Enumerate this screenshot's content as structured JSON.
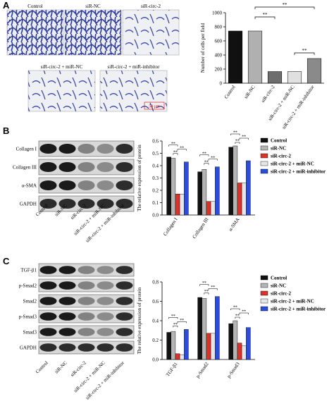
{
  "panel_a": {
    "label": "A",
    "images": [
      "Control",
      "siR-NC",
      "siR-circ-2",
      "siR-circ-2 + miR-NC",
      "siR-circ-2 + miR-inhibitor"
    ],
    "scale_bar": "50 μm"
  },
  "panel_b": {
    "label": "B",
    "blot_rows": [
      "Collagen I",
      "Collagen III",
      "α-SMA",
      "GAPDH"
    ],
    "lanes": [
      "Control",
      "siR-NC",
      "siR-circ-2",
      "siR-circ-2 + miR-NC",
      "siR-circ-2 + miR-inhibitor"
    ]
  },
  "panel_c": {
    "label": "C",
    "blot_rows": [
      "TGF-β1",
      "p-Smad2",
      "Smad2",
      "p-Smad3",
      "Smad3",
      "GAPDH"
    ],
    "lanes": [
      "Control",
      "siR-NC",
      "siR-circ-2",
      "siR-circ-2 + miR-NC",
      "siR-circ-2 + miR-inhibitor"
    ]
  },
  "chart_data": [
    {
      "type": "bar",
      "ylabel": "Number of cells per field",
      "categories": [
        "Control",
        "siR-NC",
        "siR-circ-2",
        "siR-circ-2 + miR-NC",
        "siR-circ-2 + miR-inhibitor"
      ],
      "values": [
        740,
        740,
        165,
        165,
        350
      ],
      "colors": [
        "#111111",
        "#b0b0b0",
        "#6e6e6e",
        "#e0e0e0",
        "#8a8a8a"
      ],
      "ylim": [
        0,
        1000
      ],
      "yticks": [
        0,
        200,
        400,
        600,
        800,
        1000
      ],
      "significance": "**"
    },
    {
      "type": "grouped_bar",
      "ylabel": "The relative expression of protein",
      "categories": [
        "Collagen I",
        "Collagen III",
        "α-SMA"
      ],
      "series": [
        {
          "name": "Control",
          "color": "#111111",
          "values": [
            0.47,
            0.35,
            0.55
          ]
        },
        {
          "name": "siR-NC",
          "color": "#b5b5b5",
          "values": [
            0.46,
            0.37,
            0.56
          ]
        },
        {
          "name": "siR-circ-2",
          "color": "#d9342b",
          "values": [
            0.17,
            0.11,
            0.26
          ]
        },
        {
          "name": "siR-circ-2 + miR-NC",
          "color": "#e6e6e6",
          "values": [
            0.17,
            0.11,
            0.26
          ]
        },
        {
          "name": "siR-circ-2 + miR-inhibitor",
          "color": "#2a4fd6",
          "values": [
            0.43,
            0.39,
            0.44
          ]
        }
      ],
      "ylim": [
        0,
        0.6
      ],
      "yticks": [
        {
          "value": 0,
          "label": "0.0"
        },
        0.1,
        0.2,
        0.3,
        0.4,
        0.5,
        0.6
      ],
      "significance": "**"
    },
    {
      "type": "grouped_bar",
      "ylabel": "The relative expression of protein",
      "categories": [
        "TGF-β1",
        "p-Smad2",
        "p-Smad3"
      ],
      "series": [
        {
          "name": "Control",
          "color": "#111111",
          "values": [
            0.28,
            0.64,
            0.37
          ]
        },
        {
          "name": "siR-NC",
          "color": "#b5b5b5",
          "values": [
            0.29,
            0.63,
            0.4
          ]
        },
        {
          "name": "siR-circ-2",
          "color": "#d9342b",
          "values": [
            0.06,
            0.27,
            0.17
          ]
        },
        {
          "name": "siR-circ-2 + miR-NC",
          "color": "#e6e6e6",
          "values": [
            0.05,
            0.27,
            0.14
          ]
        },
        {
          "name": "siR-circ-2 + miR-inhibitor",
          "color": "#2a4fd6",
          "values": [
            0.31,
            0.65,
            0.33
          ]
        }
      ],
      "ylim": [
        0,
        0.8
      ],
      "yticks": [
        {
          "value": 0,
          "label": "0.0"
        },
        0.2,
        0.4,
        0.6,
        0.8
      ],
      "significance": "**"
    }
  ]
}
